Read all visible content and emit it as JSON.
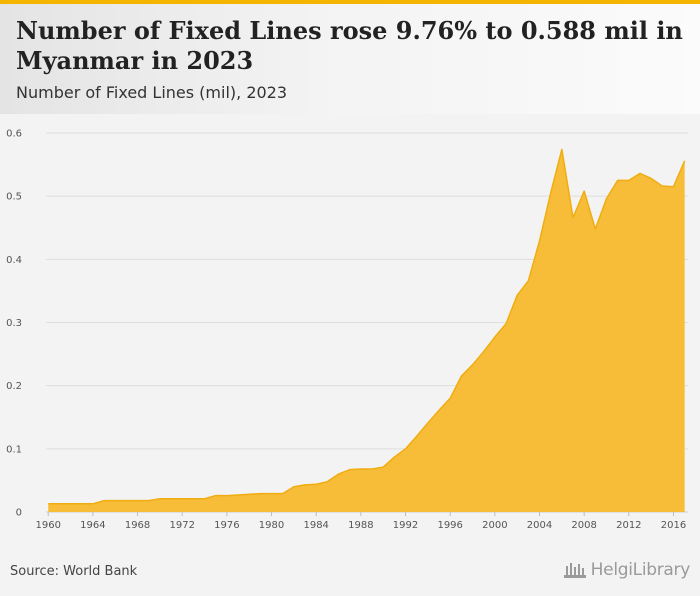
{
  "header": {
    "title": "Number of Fixed Lines rose 9.76% to 0.588 mil in Myanmar in 2023",
    "subtitle": "Number of Fixed Lines (mil), 2023"
  },
  "footer": {
    "source": "Source: World Bank",
    "logo_text": "HelgiLibrary"
  },
  "colors": {
    "area_fill": "#f7bd38",
    "area_stroke": "#f0ad10",
    "accent_bar": "#f4b400"
  },
  "chart_data": {
    "type": "area",
    "x": [
      1960,
      1961,
      1962,
      1963,
      1964,
      1965,
      1966,
      1967,
      1968,
      1969,
      1970,
      1971,
      1972,
      1973,
      1974,
      1975,
      1976,
      1977,
      1978,
      1979,
      1980,
      1981,
      1982,
      1983,
      1984,
      1985,
      1986,
      1987,
      1988,
      1989,
      1990,
      1991,
      1992,
      1993,
      1994,
      1995,
      1996,
      1997,
      1998,
      1999,
      2000,
      2001,
      2002,
      2003,
      2004,
      2005,
      2006,
      2007,
      2008,
      2009,
      2010,
      2011,
      2012,
      2013,
      2014,
      2015,
      2016,
      2017
    ],
    "series": [
      {
        "values": [
          0.013,
          0.013,
          0.013,
          0.013,
          0.013,
          0.018,
          0.018,
          0.018,
          0.018,
          0.018,
          0.021,
          0.021,
          0.021,
          0.021,
          0.021,
          0.026,
          0.026,
          0.027,
          0.028,
          0.029,
          0.029,
          0.029,
          0.04,
          0.043,
          0.044,
          0.048,
          0.06,
          0.067,
          0.068,
          0.068,
          0.071,
          0.087,
          0.1,
          0.12,
          0.141,
          0.161,
          0.18,
          0.215,
          0.233,
          0.254,
          0.277,
          0.298,
          0.343,
          0.366,
          0.429,
          0.505,
          0.574,
          0.466,
          0.508,
          0.448,
          0.496,
          0.525,
          0.525,
          0.536,
          0.528,
          0.516,
          0.515,
          0.556
        ]
      }
    ],
    "x_ticks": [
      "1960",
      "1964",
      "1968",
      "1972",
      "1976",
      "1980",
      "1984",
      "1988",
      "1992",
      "1996",
      "2000",
      "2004",
      "2008",
      "2012",
      "2016"
    ],
    "y_ticks": [
      "0",
      "0.1",
      "0.2",
      "0.3",
      "0.4",
      "0.5",
      "0.6"
    ],
    "xlim": [
      1959.8,
      2017.3
    ],
    "ylim": [
      0,
      0.6
    ],
    "grid": "horizontal",
    "legend": "none"
  }
}
